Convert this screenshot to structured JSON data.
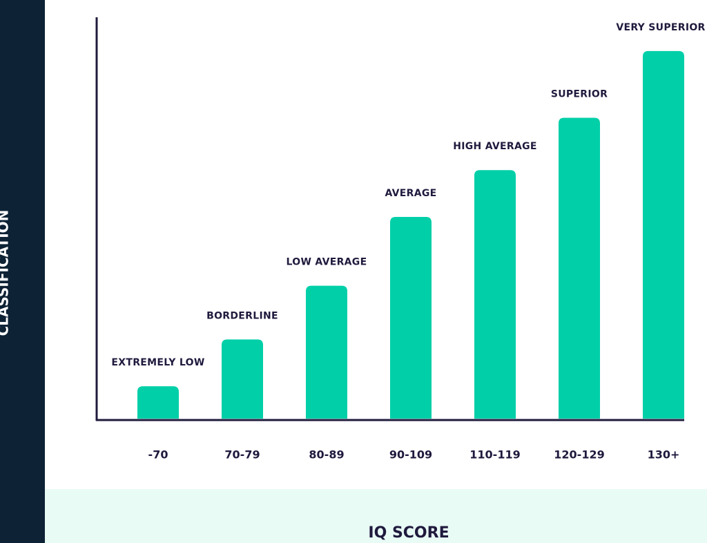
{
  "chart_data": {
    "type": "bar",
    "y_axis_label": "CLASSIFICATION",
    "x_axis_label": "IQ SCORE",
    "categories": [
      "-70",
      "70-79",
      "80-89",
      "90-109",
      "110-119",
      "120-129",
      "130+"
    ],
    "bar_labels": [
      "EXTREMELY LOW",
      "BORDERLINE",
      "LOW AVERAGE",
      "AVERAGE",
      "HIGH AVERAGE",
      "SUPERIOR",
      "VERY SUPERIOR"
    ],
    "values": [
      47,
      115,
      193,
      293,
      361,
      437,
      534
    ],
    "ylim": [
      0,
      583
    ],
    "color": "#00cfa8"
  }
}
